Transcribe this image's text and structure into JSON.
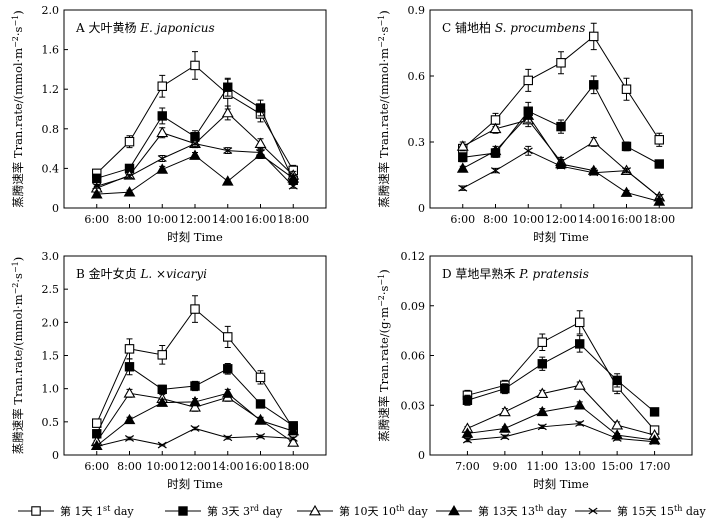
{
  "figure": {
    "legend": {
      "items": [
        {
          "zh": "第 1天 ",
          "en": "1",
          "sup": "st",
          "tail": " day",
          "marker": "open-square"
        },
        {
          "zh": "第 3天 ",
          "en": "3",
          "sup": "rd",
          "tail": " day",
          "marker": "filled-square"
        },
        {
          "zh": "第 10天 ",
          "en": "10",
          "sup": "th",
          "tail": " day",
          "marker": "open-triangle"
        },
        {
          "zh": "第 13天 ",
          "en": "13",
          "sup": "th",
          "tail": " day",
          "marker": "filled-triangle"
        },
        {
          "zh": "第 15天 ",
          "en": "15",
          "sup": "th",
          "tail": " day",
          "marker": "cross"
        }
      ]
    }
  },
  "chart_data": [
    {
      "id": "A",
      "type": "line",
      "title_prefix": "A 大叶黄杨 ",
      "title_species": "E. japonicus",
      "xlabel": "时刻  Time",
      "ylabel": "蒸腾速率 Tran.rate/(mmol·m",
      "ylabel_sup": "−2",
      "ylabel_mid": "·s",
      "ylabel_sup2": "−1",
      "ylabel_end": ")",
      "categories": [
        "6:00",
        "8:00",
        "10:00",
        "12:00",
        "14:00",
        "16:00",
        "18:00"
      ],
      "ylim": [
        0,
        2.0
      ],
      "yticks": [
        "0",
        "0.4",
        "0.8",
        "1.2",
        "1.6",
        "2.0"
      ],
      "ytick_values": [
        0,
        0.4,
        0.8,
        1.2,
        1.6,
        2.0
      ],
      "series": [
        {
          "name": "第1天 1st day",
          "marker": "open-square",
          "values": [
            0.35,
            0.67,
            1.23,
            1.44,
            1.15,
            0.95,
            0.38
          ],
          "err": [
            0.04,
            0.06,
            0.11,
            0.14,
            0.15,
            0.08,
            0.05
          ]
        },
        {
          "name": "第3天 3rd day",
          "marker": "filled-square",
          "values": [
            0.3,
            0.4,
            0.93,
            0.72,
            1.22,
            1.01,
            0.28
          ],
          "err": [
            0.03,
            0.04,
            0.08,
            0.06,
            0.09,
            0.08,
            0.03
          ]
        },
        {
          "name": "第10天 10th day",
          "marker": "open-triangle",
          "values": [
            0.2,
            0.33,
            0.76,
            0.65,
            0.96,
            0.65,
            0.33
          ],
          "err": [
            0.02,
            0.03,
            0.05,
            0.04,
            0.07,
            0.05,
            0.04
          ]
        },
        {
          "name": "第13天 13th day",
          "marker": "filled-triangle",
          "values": [
            0.14,
            0.16,
            0.39,
            0.53,
            0.27,
            0.54,
            0.3
          ],
          "err": [
            0.01,
            0.02,
            0.03,
            0.03,
            0.02,
            0.04,
            0.03
          ]
        },
        {
          "name": "第15天 15th day",
          "marker": "cross",
          "values": [
            0.22,
            0.32,
            0.5,
            0.65,
            0.58,
            0.56,
            0.22
          ],
          "err": [
            0.02,
            0.02,
            0.03,
            0.03,
            0.03,
            0.03,
            0.02
          ]
        }
      ]
    },
    {
      "id": "C",
      "type": "line",
      "title_prefix": "C 铺地柏 ",
      "title_species": "S. procumbens",
      "xlabel": "时刻  Time",
      "ylabel": "蒸腾速率 Tran.rate/(mmol·m",
      "ylabel_sup": "−2",
      "ylabel_mid": "·s",
      "ylabel_sup2": "−1",
      "ylabel_end": ")",
      "categories": [
        "6:00",
        "8:00",
        "10:00",
        "12:00",
        "14:00",
        "16:00",
        "18:00"
      ],
      "ylim": [
        0,
        0.9
      ],
      "yticks": [
        "0",
        "0.3",
        "0.6",
        "0.9"
      ],
      "ytick_values": [
        0,
        0.3,
        0.6,
        0.9
      ],
      "series": [
        {
          "name": "第1天 1st day",
          "marker": "open-square",
          "values": [
            0.27,
            0.4,
            0.58,
            0.66,
            0.78,
            0.54,
            0.31
          ],
          "err": [
            0.02,
            0.03,
            0.05,
            0.05,
            0.06,
            0.05,
            0.03
          ]
        },
        {
          "name": "第3天 3rd day",
          "marker": "filled-square",
          "values": [
            0.23,
            0.25,
            0.44,
            0.37,
            0.56,
            0.28,
            0.2
          ],
          "err": [
            0.02,
            0.02,
            0.04,
            0.03,
            0.04,
            0.02,
            0.01
          ]
        },
        {
          "name": "第10天 10th day",
          "marker": "open-triangle",
          "values": [
            0.28,
            0.36,
            0.4,
            0.21,
            0.3,
            0.17,
            0.05
          ],
          "err": [
            0.02,
            0.02,
            0.03,
            0.02,
            0.02,
            0.01,
            0.01
          ]
        },
        {
          "name": "第13天 13th day",
          "marker": "filled-triangle",
          "values": [
            0.18,
            0.26,
            0.42,
            0.2,
            0.17,
            0.07,
            0.03
          ],
          "err": [
            0.01,
            0.02,
            0.03,
            0.02,
            0.01,
            0.01,
            0.01
          ]
        },
        {
          "name": "第15天 15th day",
          "marker": "cross",
          "values": [
            0.09,
            0.17,
            0.26,
            0.19,
            0.16,
            0.17,
            0.05
          ],
          "err": [
            0.01,
            0.01,
            0.02,
            0.01,
            0.01,
            0.01,
            0.01
          ]
        }
      ]
    },
    {
      "id": "B",
      "type": "line",
      "title_prefix": "B 金叶女贞 ",
      "title_species": "L. ×vicaryi",
      "xlabel": "时刻  Time",
      "ylabel": "蒸腾速率 Tran.rate/(mmol·m",
      "ylabel_sup": "−2",
      "ylabel_mid": "·s",
      "ylabel_sup2": "−1",
      "ylabel_end": ")",
      "categories": [
        "6:00",
        "8:00",
        "10:00",
        "12:00",
        "14:00",
        "16:00",
        "18:00"
      ],
      "ylim": [
        0,
        3.0
      ],
      "yticks": [
        "0",
        "0.5",
        "1.0",
        "1.5",
        "2.0",
        "2.5",
        "3.0"
      ],
      "ytick_values": [
        0,
        0.5,
        1.0,
        1.5,
        2.0,
        2.5,
        3.0
      ],
      "series": [
        {
          "name": "第1天 1st day",
          "marker": "open-square",
          "values": [
            0.48,
            1.6,
            1.51,
            2.2,
            1.78,
            1.17,
            0.4
          ],
          "err": [
            0.04,
            0.15,
            0.14,
            0.2,
            0.16,
            0.1,
            0.04
          ]
        },
        {
          "name": "第3天 3rd day",
          "marker": "filled-square",
          "values": [
            0.32,
            1.33,
            0.99,
            1.04,
            1.3,
            0.77,
            0.44
          ],
          "err": [
            0.03,
            0.12,
            0.06,
            0.07,
            0.08,
            0.05,
            0.04
          ]
        },
        {
          "name": "第10天 10th day",
          "marker": "open-triangle",
          "values": [
            0.2,
            0.93,
            0.85,
            0.72,
            0.87,
            0.53,
            0.19
          ],
          "err": [
            0.02,
            0.06,
            0.06,
            0.06,
            0.06,
            0.04,
            0.02
          ]
        },
        {
          "name": "第13天 13th day",
          "marker": "filled-triangle",
          "values": [
            0.14,
            0.53,
            0.79,
            0.8,
            0.93,
            0.52,
            0.36
          ],
          "err": [
            0.01,
            0.04,
            0.05,
            0.05,
            0.06,
            0.04,
            0.03
          ]
        },
        {
          "name": "第15天 15th day",
          "marker": "cross",
          "values": [
            0.13,
            0.25,
            0.15,
            0.4,
            0.26,
            0.28,
            0.25
          ],
          "err": [
            0.01,
            0.02,
            0.01,
            0.02,
            0.02,
            0.02,
            0.02
          ]
        }
      ]
    },
    {
      "id": "D",
      "type": "line",
      "title_prefix": "D 草地早熟禾 ",
      "title_species": "P. pratensis",
      "xlabel": "时刻  Time",
      "ylabel": "蒸腾速率 Tran.rate/(g·m",
      "ylabel_sup": "−2",
      "ylabel_mid": "·s",
      "ylabel_sup2": "−1",
      "ylabel_end": ")",
      "categories": [
        "7:00",
        "9:00",
        "11:00",
        "13:00",
        "15:00",
        "17:00"
      ],
      "ylim": [
        0,
        0.12
      ],
      "yticks": [
        "0",
        "0.03",
        "0.06",
        "0.09",
        "0.12"
      ],
      "ytick_values": [
        0,
        0.03,
        0.06,
        0.09,
        0.12
      ],
      "series": [
        {
          "name": "第1天 1st day",
          "marker": "open-square",
          "values": [
            0.036,
            0.042,
            0.068,
            0.08,
            0.041,
            0.015
          ],
          "err": [
            0.003,
            0.003,
            0.005,
            0.007,
            0.004,
            0.002
          ]
        },
        {
          "name": "第3天 3rd day",
          "marker": "filled-square",
          "values": [
            0.033,
            0.04,
            0.055,
            0.067,
            0.045,
            0.026
          ],
          "err": [
            0.003,
            0.003,
            0.004,
            0.005,
            0.004,
            0.002
          ]
        },
        {
          "name": "第10天 10th day",
          "marker": "open-triangle",
          "values": [
            0.016,
            0.026,
            0.037,
            0.042,
            0.018,
            0.012
          ],
          "err": [
            0.001,
            0.002,
            0.002,
            0.002,
            0.002,
            0.001
          ]
        },
        {
          "name": "第13天 13th day",
          "marker": "filled-triangle",
          "values": [
            0.013,
            0.016,
            0.026,
            0.03,
            0.012,
            0.009
          ],
          "err": [
            0.001,
            0.001,
            0.002,
            0.002,
            0.001,
            0.001
          ]
        },
        {
          "name": "第15天 15th day",
          "marker": "cross",
          "values": [
            0.009,
            0.011,
            0.017,
            0.019,
            0.01,
            0.008
          ],
          "err": [
            0.001,
            0.001,
            0.001,
            0.001,
            0.001,
            0.001
          ]
        }
      ]
    }
  ]
}
